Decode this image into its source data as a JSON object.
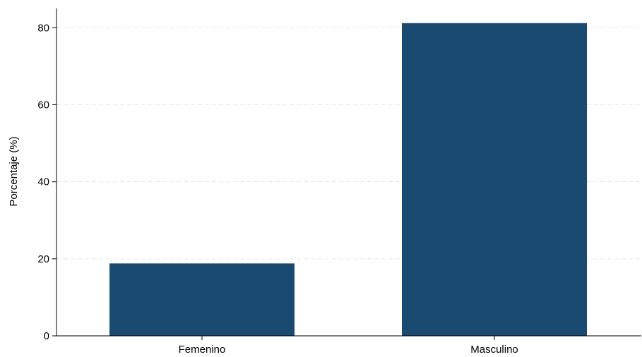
{
  "chart_data": {
    "type": "bar",
    "categories": [
      "Femenino",
      "Masculino"
    ],
    "values": [
      18.8,
      81.2
    ],
    "title": "",
    "xlabel": "",
    "ylabel": "Porcentaje (%)",
    "ylim": [
      0,
      85
    ],
    "yticks": [
      "0",
      "20",
      "40",
      "60",
      "80"
    ],
    "grid": true,
    "bar_color": "#1b4a70",
    "grid_color": "#e6e6e6"
  }
}
